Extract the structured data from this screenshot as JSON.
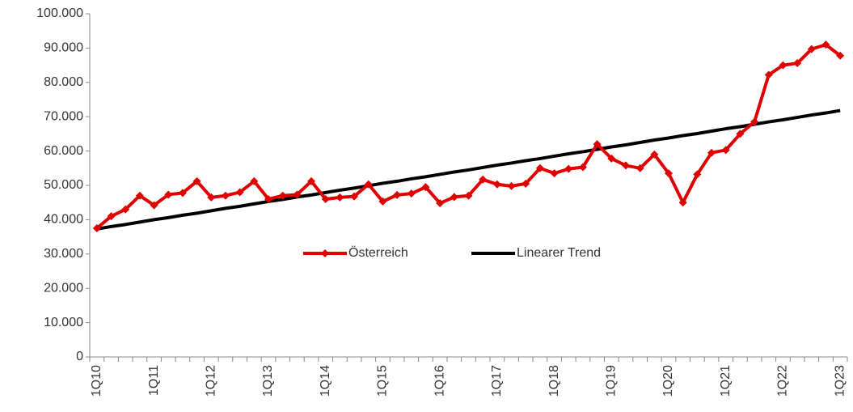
{
  "chart_data": {
    "type": "line",
    "categories": [
      "1Q10",
      null,
      null,
      null,
      "1Q11",
      null,
      null,
      null,
      "1Q12",
      null,
      null,
      null,
      "1Q13",
      null,
      null,
      null,
      "1Q14",
      null,
      null,
      null,
      "1Q15",
      null,
      null,
      null,
      "1Q16",
      null,
      null,
      null,
      "1Q17",
      null,
      null,
      null,
      "1Q18",
      null,
      null,
      null,
      "1Q19",
      null,
      null,
      null,
      "1Q20",
      null,
      null,
      null,
      "1Q21",
      null,
      null,
      null,
      "1Q22",
      null,
      null,
      null,
      "1Q23"
    ],
    "series": [
      {
        "name": "Österreich",
        "color": "#e00000",
        "marker": "diamond",
        "values": [
          37500,
          41000,
          43000,
          47000,
          44200,
          47300,
          47800,
          51200,
          46500,
          47000,
          48000,
          51200,
          46000,
          47000,
          47300,
          51200,
          46000,
          46500,
          46800,
          50300,
          45300,
          47200,
          47600,
          49500,
          44800,
          46600,
          47000,
          51700,
          50300,
          49800,
          50500,
          55000,
          53500,
          54800,
          55300,
          62000,
          57800,
          55800,
          55000,
          59000,
          53500,
          45000,
          53200,
          59500,
          60300,
          65000,
          68500,
          82200,
          85000,
          85600,
          89700,
          91000,
          87800
        ]
      },
      {
        "name": "Linearer Trend",
        "color": "#000000",
        "marker": "none",
        "values": [
          37300,
          38000,
          38600,
          39300,
          40000,
          40600,
          41300,
          41900,
          42600,
          43300,
          43900,
          44600,
          45300,
          45900,
          46600,
          47200,
          47900,
          48600,
          49200,
          49900,
          50600,
          51200,
          51900,
          52500,
          53200,
          53900,
          54500,
          55200,
          55900,
          56500,
          57200,
          57800,
          58500,
          59200,
          59800,
          60500,
          61200,
          61800,
          62500,
          63200,
          63800,
          64500,
          65100,
          65800,
          66500,
          67100,
          67800,
          68500,
          69100,
          69800,
          70500,
          71100,
          71800
        ]
      }
    ],
    "ylim": [
      0,
      100000
    ],
    "yticks": [
      0,
      {
        "value": 10000,
        "label": "10.000"
      },
      {
        "value": 20000,
        "label": "20.000"
      },
      {
        "value": 30000,
        "label": "30.000"
      },
      {
        "value": 40000,
        "label": "40.000"
      },
      {
        "value": 50000,
        "label": "50.000"
      },
      {
        "value": 60000,
        "label": "60.000"
      },
      {
        "value": 70000,
        "label": "70.000"
      },
      {
        "value": 80000,
        "label": "80.000"
      },
      {
        "value": 90000,
        "label": "90.000"
      },
      {
        "value": 100000,
        "label": "100.000"
      }
    ],
    "grid": false,
    "legend": "center"
  }
}
